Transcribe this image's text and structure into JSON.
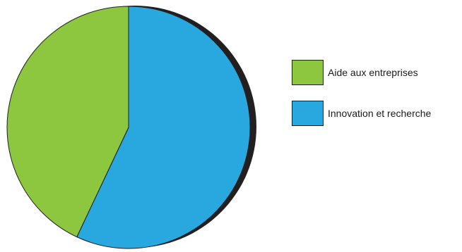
{
  "chart_data": {
    "type": "pie",
    "title": "",
    "slices": [
      {
        "label": "Innovation et recherche",
        "value": 57,
        "color": "#29a7df"
      },
      {
        "label": "Aide aux entreprises",
        "value": 43,
        "color": "#8dc63f"
      }
    ],
    "start_angle_deg": 0,
    "direction": "clockwise",
    "legend": {
      "position": "right",
      "order": [
        "Aide aux entreprises",
        "Innovation et recherche"
      ]
    },
    "shadow_color": "#231f20",
    "outline_color": "#1e1e1e"
  }
}
